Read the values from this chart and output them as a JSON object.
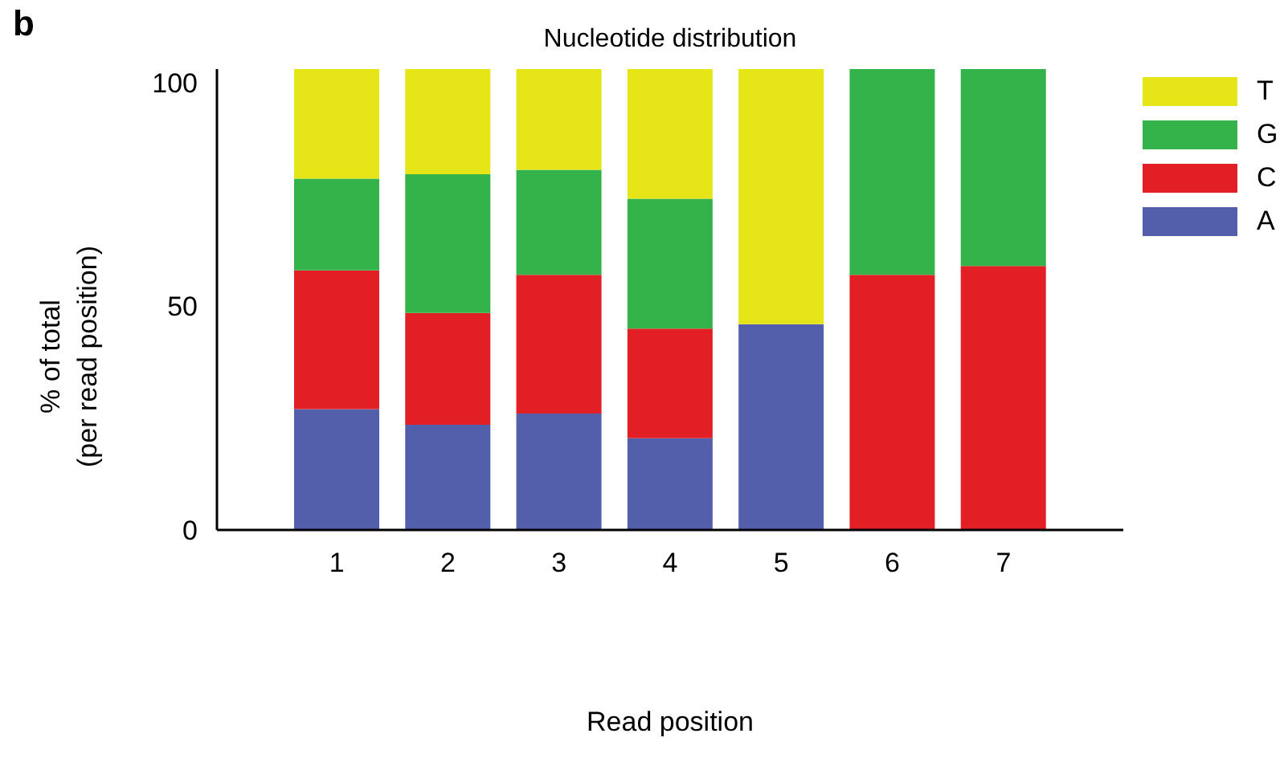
{
  "chart_data": {
    "type": "bar",
    "title": "Nucleotide distribution",
    "xlabel": "Read position",
    "ylabel": "% of total\n(per read position)",
    "annotations": [
      "b"
    ],
    "categories": [
      "1",
      "2",
      "3",
      "4",
      "5",
      "6",
      "7"
    ],
    "stacked": true,
    "series": [
      {
        "name": "A",
        "color": "#545fab",
        "values": [
          27,
          23.5,
          26,
          20.5,
          46,
          0,
          0
        ]
      },
      {
        "name": "C",
        "color": "#e31f26",
        "values": [
          31,
          25,
          31,
          24.5,
          0,
          57,
          59
        ]
      },
      {
        "name": "G",
        "color": "#33b34a",
        "values": [
          20.5,
          31,
          23.5,
          29,
          0,
          46,
          44
        ]
      },
      {
        "name": "T",
        "color": "#e5e517",
        "values": [
          24.5,
          23.5,
          22.5,
          29,
          57,
          0,
          0
        ]
      }
    ],
    "ylim": [
      0,
      103
    ],
    "yticks": [
      0,
      50,
      100
    ],
    "grid": false,
    "legend": "top right"
  }
}
